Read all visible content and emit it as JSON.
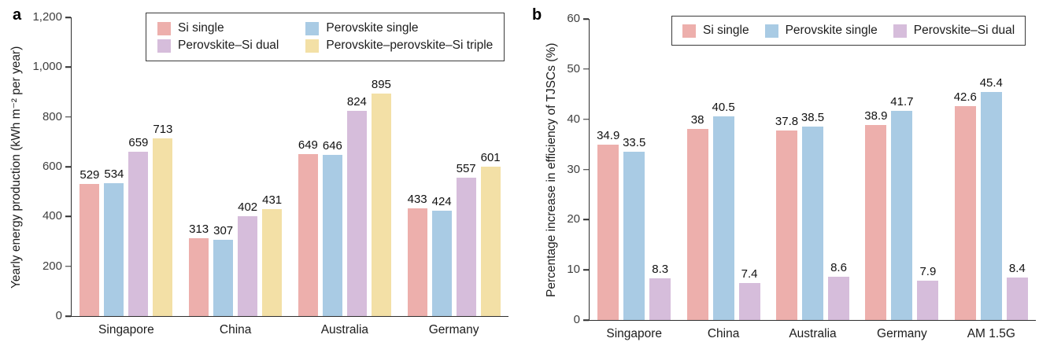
{
  "chart_data": [
    {
      "type": "bar",
      "panel_label": "a",
      "title": "",
      "xlabel": "",
      "ylabel": "Yearly energy production (kWh m⁻² per year)",
      "ylim": [
        0,
        1200
      ],
      "grid": false,
      "yticks": [
        {
          "value": 0,
          "label": "0"
        },
        {
          "value": 200,
          "label": "200"
        },
        {
          "value": 400,
          "label": "400"
        },
        {
          "value": 600,
          "label": "600"
        },
        {
          "value": 800,
          "label": "800"
        },
        {
          "value": 1000,
          "label": "1,000"
        },
        {
          "value": 1200,
          "label": "1,200"
        }
      ],
      "categories": [
        "Singapore",
        "China",
        "Australia",
        "Germany"
      ],
      "series": [
        {
          "name": "Si single",
          "color": "#EDAFAC",
          "values": [
            529,
            313,
            649,
            433
          ],
          "labels": [
            "529",
            "313",
            "649",
            "433"
          ]
        },
        {
          "name": "Perovskite single",
          "color": "#A9CBE4",
          "values": [
            534,
            307,
            646,
            424
          ],
          "labels": [
            "534",
            "307",
            "646",
            "424"
          ]
        },
        {
          "name": "Perovskite–Si dual",
          "color": "#D6BDDB",
          "values": [
            659,
            402,
            824,
            557
          ],
          "labels": [
            "659",
            "402",
            "824",
            "557"
          ]
        },
        {
          "name": "Perovskite–perovskite–Si triple",
          "color": "#F3E0A6",
          "values": [
            713,
            431,
            895,
            601
          ],
          "labels": [
            "713",
            "431",
            "895",
            "601"
          ]
        }
      ],
      "legend": {
        "position": "top-inside",
        "layout": "two-column",
        "entries": [
          {
            "label": "Si single",
            "color": "#EDAFAC"
          },
          {
            "label": "Perovskite–Si dual",
            "color": "#D6BDDB"
          },
          {
            "label": "Perovskite single",
            "color": "#A9CBE4"
          },
          {
            "label": "Perovskite–perovskite–Si triple",
            "color": "#F3E0A6"
          }
        ]
      }
    },
    {
      "type": "bar",
      "panel_label": "b",
      "title": "",
      "xlabel": "",
      "ylabel": "Percentage increase in efficiency of TJSCs (%)",
      "ylim": [
        0,
        60
      ],
      "grid": false,
      "yticks": [
        {
          "value": 0,
          "label": "0"
        },
        {
          "value": 10,
          "label": "10"
        },
        {
          "value": 20,
          "label": "20"
        },
        {
          "value": 30,
          "label": "30"
        },
        {
          "value": 40,
          "label": "40"
        },
        {
          "value": 50,
          "label": "50"
        },
        {
          "value": 60,
          "label": "60"
        }
      ],
      "categories": [
        "Singapore",
        "China",
        "Australia",
        "Germany",
        "AM 1.5G"
      ],
      "series": [
        {
          "name": "Si single",
          "color": "#EDAFAC",
          "values": [
            34.9,
            38,
            37.8,
            38.9,
            42.6
          ],
          "labels": [
            "34.9",
            "38",
            "37.8",
            "38.9",
            "42.6"
          ]
        },
        {
          "name": "Perovskite single",
          "color": "#A9CBE4",
          "values": [
            33.5,
            40.5,
            38.5,
            41.7,
            45.4
          ],
          "labels": [
            "33.5",
            "40.5",
            "38.5",
            "41.7",
            "45.4"
          ]
        },
        {
          "name": "Perovskite–Si dual",
          "color": "#D6BDDB",
          "values": [
            8.3,
            7.4,
            8.6,
            7.9,
            8.4
          ],
          "labels": [
            "8.3",
            "7.4",
            "8.6",
            "7.9",
            "8.4"
          ]
        }
      ],
      "legend": {
        "position": "top-inside",
        "layout": "single-row",
        "entries": [
          {
            "label": "Si single",
            "color": "#EDAFAC"
          },
          {
            "label": "Perovskite single",
            "color": "#A9CBE4"
          },
          {
            "label": "Perovskite–Si dual",
            "color": "#D6BDDB"
          }
        ]
      }
    }
  ]
}
